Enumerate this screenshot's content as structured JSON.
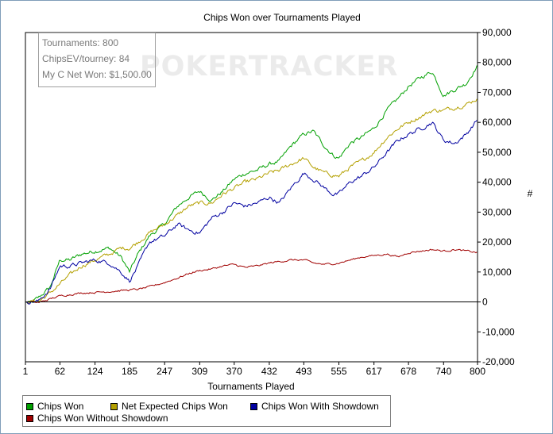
{
  "chart_data": {
    "type": "line",
    "title": "Chips Won over Tournaments Played",
    "xlabel": "Tournaments Played",
    "ylabel": "#",
    "xlim": [
      1,
      800
    ],
    "ylim": [
      -20000,
      90000
    ],
    "x_ticks": [
      1,
      62,
      124,
      185,
      247,
      309,
      370,
      432,
      493,
      555,
      617,
      678,
      740,
      800
    ],
    "y_ticks": [
      -20000,
      -10000,
      0,
      10000,
      20000,
      30000,
      40000,
      50000,
      60000,
      70000,
      80000,
      90000
    ],
    "y_tick_labels": [
      "-20,000",
      "-10,000",
      "0",
      "10,000",
      "20,000",
      "30,000",
      "40,000",
      "50,000",
      "60,000",
      "70,000",
      "80,000",
      "90,000"
    ],
    "x_tick_labels": [
      "1",
      "62",
      "124",
      "185",
      "247",
      "309",
      "370",
      "432",
      "493",
      "555",
      "617",
      "678",
      "740",
      "800"
    ],
    "grid": false,
    "legend_position": "bottom",
    "series": [
      {
        "name": "Chips Won",
        "color": "#00a000",
        "points": [
          [
            1,
            0
          ],
          [
            10,
            -500
          ],
          [
            25,
            1500
          ],
          [
            45,
            5000
          ],
          [
            62,
            14000
          ],
          [
            80,
            14000
          ],
          [
            100,
            16000
          ],
          [
            124,
            17000
          ],
          [
            150,
            18000
          ],
          [
            170,
            15000
          ],
          [
            185,
            10000
          ],
          [
            200,
            16000
          ],
          [
            220,
            22000
          ],
          [
            247,
            26000
          ],
          [
            270,
            32000
          ],
          [
            290,
            35000
          ],
          [
            309,
            37000
          ],
          [
            330,
            34000
          ],
          [
            350,
            37000
          ],
          [
            370,
            41000
          ],
          [
            390,
            43000
          ],
          [
            410,
            44000
          ],
          [
            432,
            46000
          ],
          [
            450,
            47000
          ],
          [
            470,
            52000
          ],
          [
            493,
            56000
          ],
          [
            510,
            57000
          ],
          [
            530,
            52000
          ],
          [
            545,
            49000
          ],
          [
            555,
            48000
          ],
          [
            575,
            53000
          ],
          [
            595,
            55000
          ],
          [
            617,
            58000
          ],
          [
            640,
            64000
          ],
          [
            660,
            68000
          ],
          [
            678,
            72000
          ],
          [
            700,
            75000
          ],
          [
            720,
            77000
          ],
          [
            740,
            69000
          ],
          [
            760,
            71000
          ],
          [
            780,
            73000
          ],
          [
            800,
            79000
          ]
        ]
      },
      {
        "name": "Net Expected Chips Won",
        "color": "#b4a000",
        "points": [
          [
            1,
            0
          ],
          [
            25,
            300
          ],
          [
            45,
            3000
          ],
          [
            62,
            6000
          ],
          [
            80,
            9000
          ],
          [
            100,
            12000
          ],
          [
            124,
            14000
          ],
          [
            150,
            16000
          ],
          [
            170,
            18000
          ],
          [
            185,
            18000
          ],
          [
            200,
            20000
          ],
          [
            220,
            23000
          ],
          [
            247,
            26000
          ],
          [
            270,
            29000
          ],
          [
            290,
            32000
          ],
          [
            309,
            33000
          ],
          [
            330,
            33000
          ],
          [
            350,
            36000
          ],
          [
            370,
            38000
          ],
          [
            390,
            40000
          ],
          [
            410,
            41000
          ],
          [
            432,
            43000
          ],
          [
            450,
            44000
          ],
          [
            470,
            46000
          ],
          [
            493,
            48000
          ],
          [
            510,
            45000
          ],
          [
            530,
            43000
          ],
          [
            555,
            42000
          ],
          [
            575,
            45000
          ],
          [
            595,
            47000
          ],
          [
            617,
            50000
          ],
          [
            640,
            55000
          ],
          [
            660,
            58000
          ],
          [
            678,
            60000
          ],
          [
            700,
            62000
          ],
          [
            720,
            64000
          ],
          [
            740,
            64000
          ],
          [
            760,
            65000
          ],
          [
            780,
            66000
          ],
          [
            800,
            68000
          ]
        ]
      },
      {
        "name": "Chips Won With Showdown",
        "color": "#0000a0",
        "points": [
          [
            1,
            0
          ],
          [
            25,
            300
          ],
          [
            45,
            4500
          ],
          [
            62,
            12000
          ],
          [
            80,
            12000
          ],
          [
            100,
            13000
          ],
          [
            124,
            14000
          ],
          [
            150,
            13000
          ],
          [
            170,
            10000
          ],
          [
            185,
            7000
          ],
          [
            200,
            12000
          ],
          [
            220,
            20000
          ],
          [
            247,
            22000
          ],
          [
            270,
            26000
          ],
          [
            290,
            24000
          ],
          [
            309,
            23000
          ],
          [
            330,
            28000
          ],
          [
            350,
            30000
          ],
          [
            370,
            33000
          ],
          [
            390,
            32000
          ],
          [
            410,
            33000
          ],
          [
            432,
            35000
          ],
          [
            450,
            33000
          ],
          [
            470,
            38000
          ],
          [
            493,
            43000
          ],
          [
            510,
            41000
          ],
          [
            530,
            38000
          ],
          [
            545,
            36000
          ],
          [
            555,
            36000
          ],
          [
            575,
            40000
          ],
          [
            595,
            42000
          ],
          [
            617,
            45000
          ],
          [
            640,
            50000
          ],
          [
            660,
            54000
          ],
          [
            678,
            56000
          ],
          [
            700,
            58000
          ],
          [
            720,
            60000
          ],
          [
            740,
            54000
          ],
          [
            760,
            53000
          ],
          [
            780,
            56000
          ],
          [
            800,
            61000
          ]
        ]
      },
      {
        "name": "Chips Won Without Showdown",
        "color": "#a00000",
        "points": [
          [
            1,
            0
          ],
          [
            25,
            -200
          ],
          [
            45,
            1000
          ],
          [
            62,
            2000
          ],
          [
            80,
            2500
          ],
          [
            100,
            3000
          ],
          [
            124,
            3200
          ],
          [
            150,
            3500
          ],
          [
            185,
            4000
          ],
          [
            200,
            4200
          ],
          [
            220,
            5000
          ],
          [
            247,
            6500
          ],
          [
            270,
            8000
          ],
          [
            290,
            9500
          ],
          [
            309,
            10500
          ],
          [
            330,
            11000
          ],
          [
            350,
            12000
          ],
          [
            370,
            12500
          ],
          [
            390,
            11500
          ],
          [
            410,
            12000
          ],
          [
            432,
            13000
          ],
          [
            450,
            13500
          ],
          [
            470,
            14000
          ],
          [
            493,
            14000
          ],
          [
            510,
            13000
          ],
          [
            530,
            12500
          ],
          [
            555,
            13000
          ],
          [
            575,
            14000
          ],
          [
            595,
            15000
          ],
          [
            617,
            15500
          ],
          [
            640,
            16000
          ],
          [
            660,
            15000
          ],
          [
            678,
            16500
          ],
          [
            700,
            17000
          ],
          [
            720,
            17500
          ],
          [
            740,
            17000
          ],
          [
            760,
            17500
          ],
          [
            780,
            17000
          ],
          [
            800,
            16500
          ]
        ]
      }
    ]
  },
  "stats": {
    "tournaments": "Tournaments: 800",
    "chips_ev": "ChipsEV/tourney: 84",
    "net_won": "My C Net Won: $1,500.00"
  },
  "watermark": "POKERTRACKER",
  "legend": {
    "items": [
      "Chips Won",
      "Net Expected Chips Won",
      "Chips Won With Showdown",
      "Chips Won Without Showdown"
    ]
  }
}
